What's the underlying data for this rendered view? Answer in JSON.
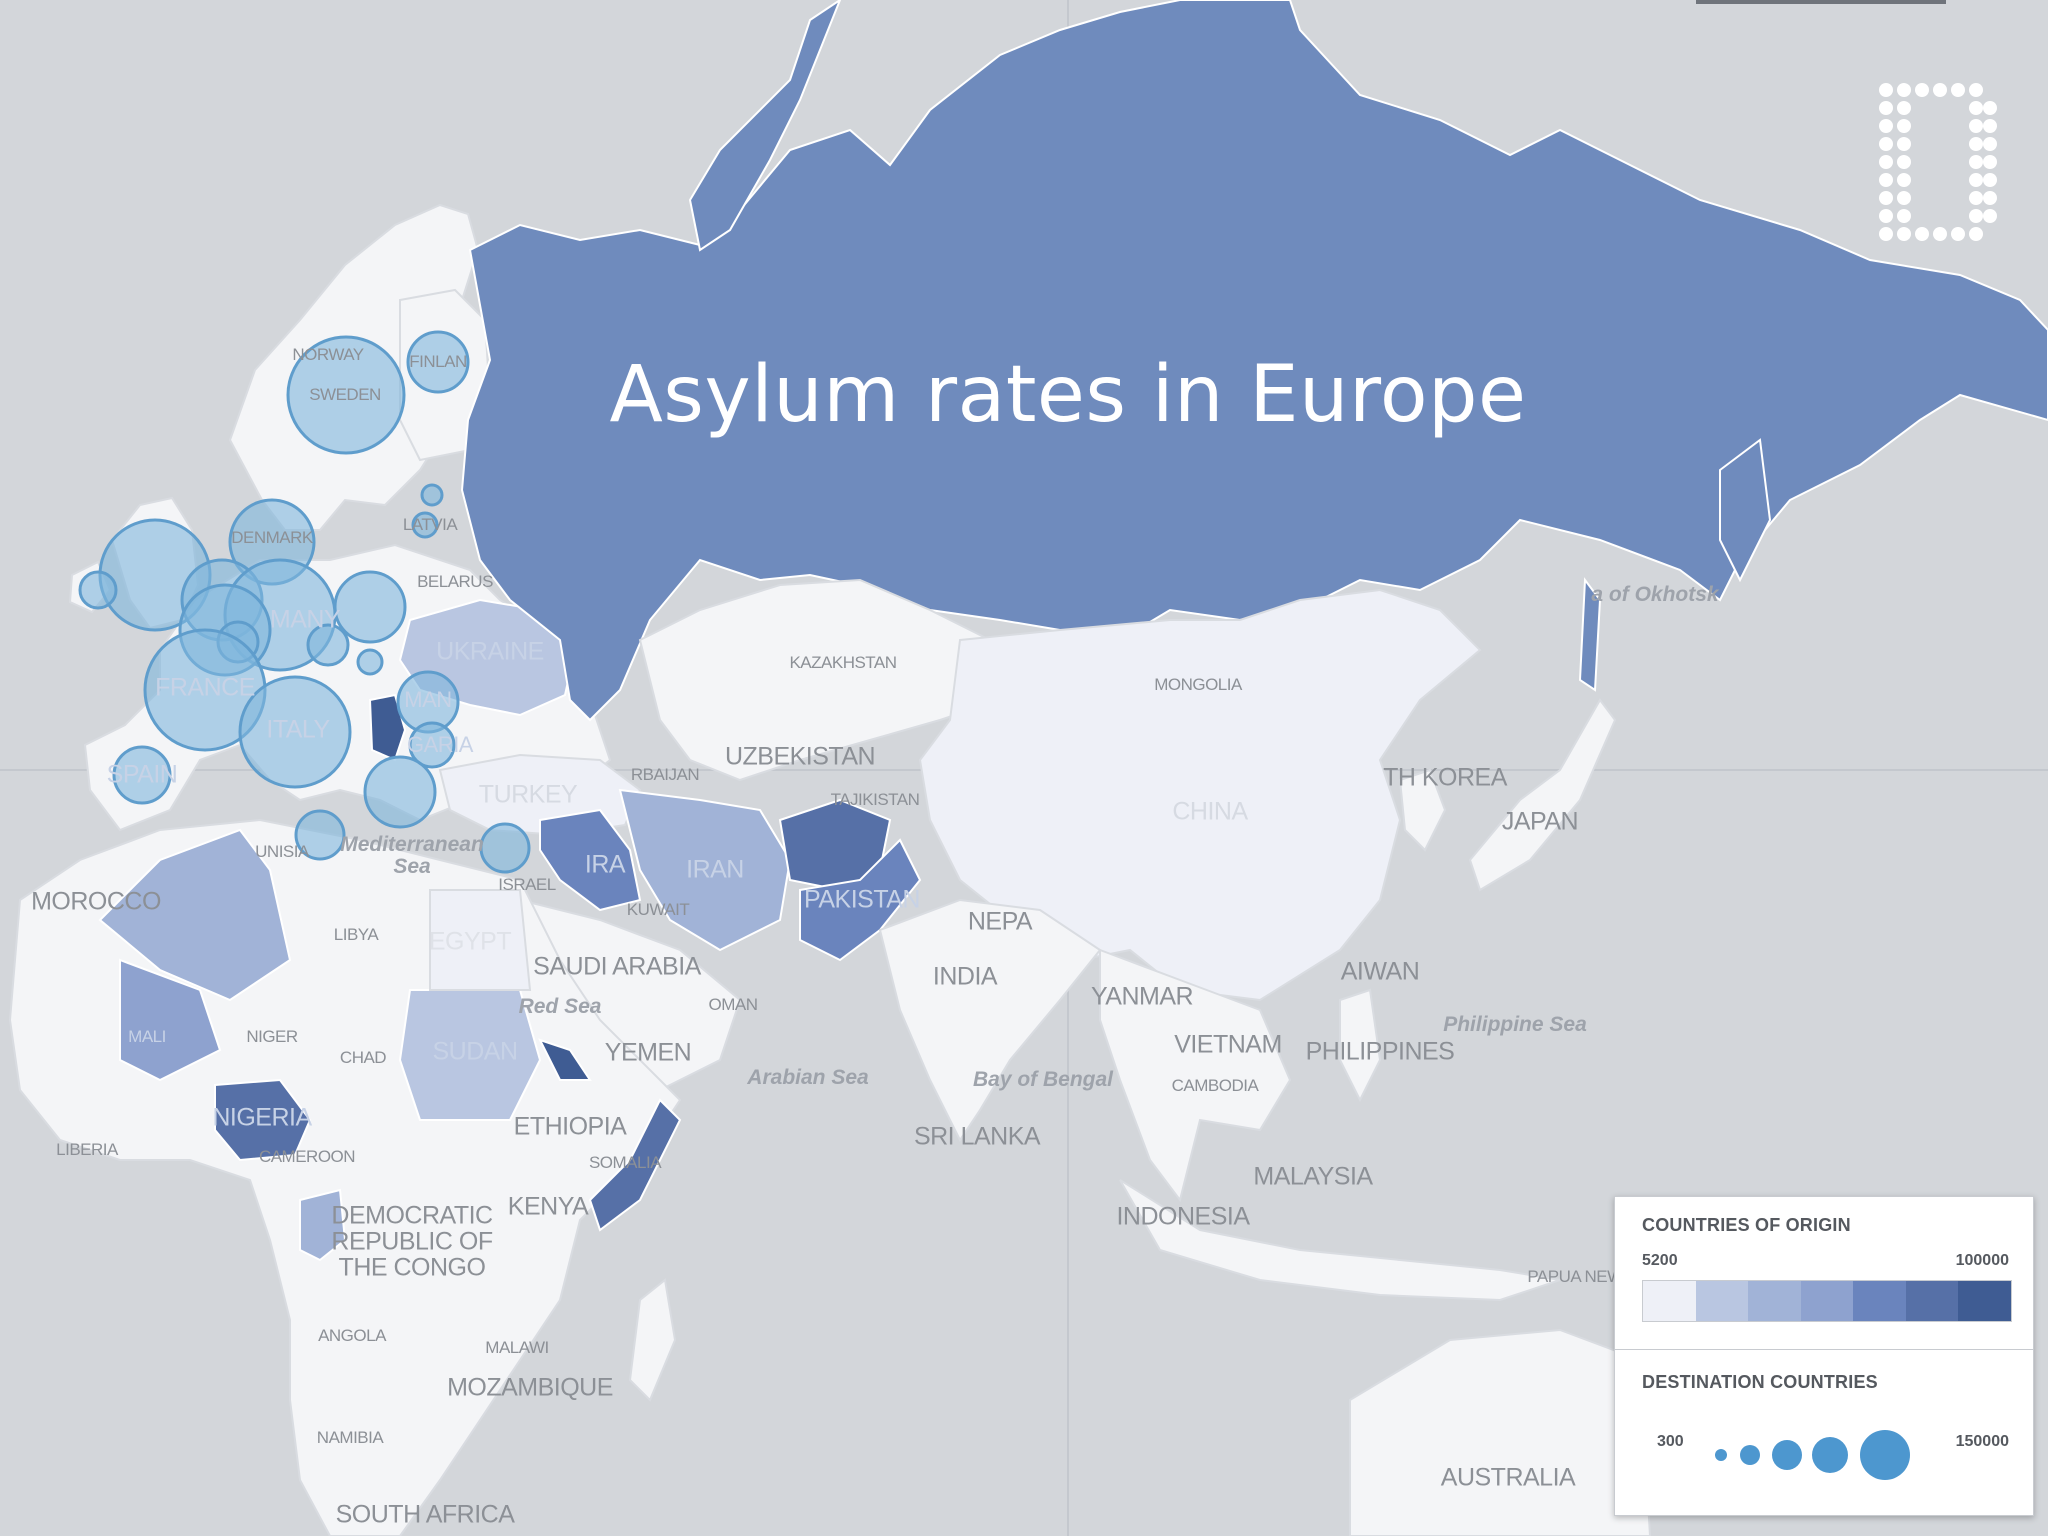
{
  "title": "Asylum rates in Europe",
  "colors": {
    "ocean": "#d3d6da",
    "land": "#f4f5f7",
    "russia": "#6f8bbd",
    "bubble_fill": "#7fb6dc",
    "bubble_stroke": "#5f9dcc",
    "ramp": [
      "#eef0f7",
      "#b9c6e1",
      "#a1b3d7",
      "#8ea2cf",
      "#6a84bd",
      "#5670a7",
      "#3f5c93"
    ]
  },
  "legend": {
    "origin_heading": "COUNTRIES OF ORIGIN",
    "origin_min": "5200",
    "origin_max": "100000",
    "destination_heading": "DESTINATION COUNTRIES",
    "destination_min": "300",
    "destination_max": "150000"
  },
  "labels": {
    "norway": "NORWAY",
    "sweden": "SWEDEN",
    "finland": "FINLAN",
    "latvia": "LATVIA",
    "denmark": "DENMARK",
    "belarus": "BELARUS",
    "ukraine": "UKRAINE",
    "germany": "MANY",
    "france": "FRANCE",
    "italy": "ITALY",
    "spain": "SPAIN",
    "romania": "MAN",
    "bulgaria": "GARIA",
    "turkey": "TURKEY",
    "azerbaijan": "RBAIJAN",
    "kazakhstan": "KAZAKHSTAN",
    "uzbekistan": "UZBEKISTAN",
    "tajikistan": "TAJIKISTAN",
    "mongolia": "MONGOLIA",
    "china": "CHINA",
    "north_korea": "TH KOREA",
    "japan": "JAPAN",
    "iran": "IRAN",
    "iraq": "IRA",
    "pakistan": "PAKISTAN",
    "nepal": "NEPA",
    "india": "INDIA",
    "myanmar": "YANMAR",
    "taiwan": "AIWAN",
    "vietnam": "VIETNAM",
    "philippines": "PHILIPPINES",
    "cambodia": "CAMBODIA",
    "sri_lanka": "SRI LANKA",
    "malaysia": "MALAYSIA",
    "indonesia": "INDONESIA",
    "papua": "PAPUA NEW",
    "australia": "AUSTRALIA",
    "tunisia": "UNISIA",
    "morocco": "MOROCCO",
    "libya": "LIBYA",
    "egypt": "EGYPT",
    "israel": "ISRAEL",
    "kuwait": "KUWAIT",
    "saudi_arabia": "SAUDI ARABIA",
    "oman": "OMAN",
    "yemen": "YEMEN",
    "mali": "MALI",
    "niger": "NIGER",
    "chad": "CHAD",
    "sudan": "SUDAN",
    "ethiopia": "ETHIOPIA",
    "somalia": "SOMALIA",
    "nigeria": "NIGERIA",
    "cameroon": "CAMEROON",
    "liberia": "LIBERIA",
    "kenya": "KENYA",
    "drc_1": "DEMOCRATIC",
    "drc_2": "REPUBLIC OF",
    "drc_3": "THE CONGO",
    "angola": "ANGOLA",
    "malawi": "MALAWI",
    "mozambique": "MOZAMBIQUE",
    "namibia": "NAMIBIA",
    "south_africa": "SOUTH AFRICA"
  },
  "water": {
    "mediterranean_1": "Mediterranean",
    "mediterranean_2": "Sea",
    "red_sea": "Red Sea",
    "arabian_sea": "Arabian Sea",
    "bay_of_bengal": "Bay of Bengal",
    "philippine_sea": "Philippine Sea",
    "okhotsk": "a of Okhotsk"
  }
}
